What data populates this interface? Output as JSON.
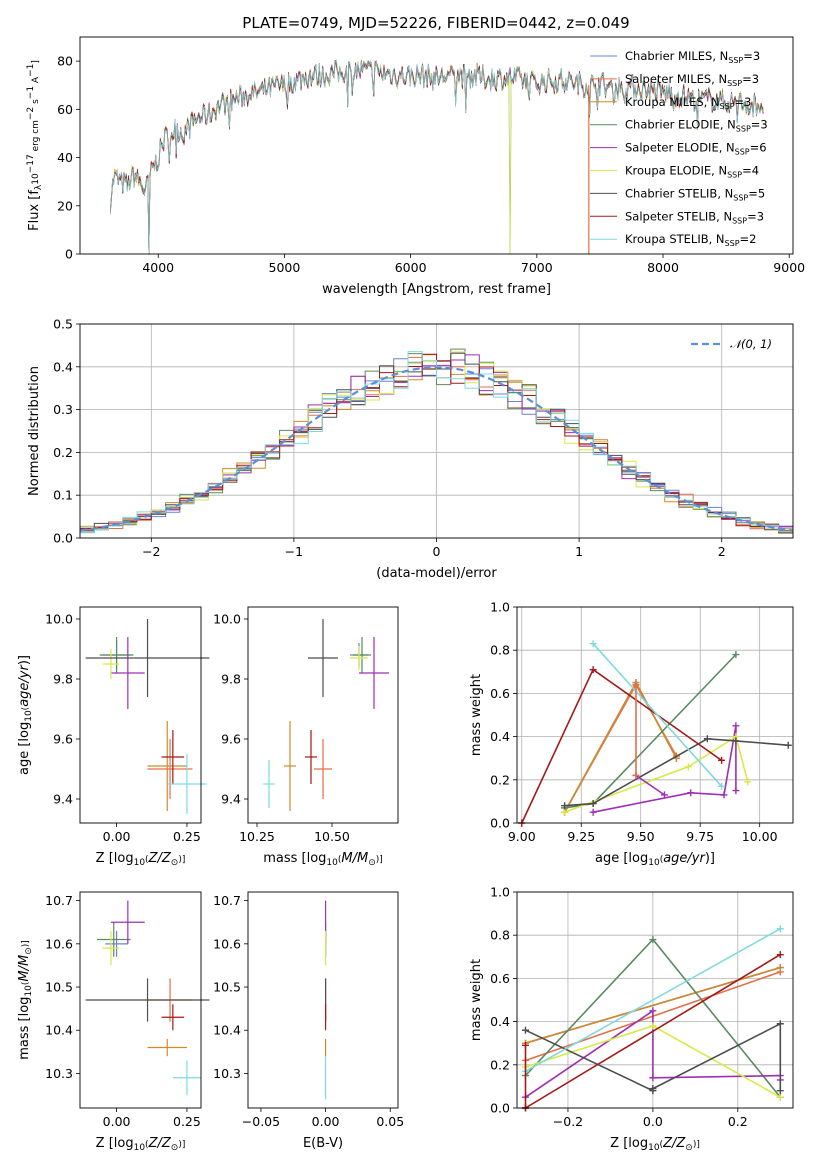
{
  "figure": {
    "title": "PLATE=0749, MJD=52226, FIBERID=0442, z=0.049"
  },
  "models": [
    {
      "name": "Chabrier MILES",
      "nssp": 3,
      "color": "#6f7fdc"
    },
    {
      "name": "Salpeter MILES",
      "nssp": 3,
      "color": "#e36f47"
    },
    {
      "name": "Kroupa MILES",
      "nssp": 3,
      "color": "#d08a2a"
    },
    {
      "name": "Chabrier ELODIE",
      "nssp": 3,
      "color": "#5a8a5e"
    },
    {
      "name": "Salpeter ELODIE",
      "nssp": 6,
      "color": "#9e2fb3"
    },
    {
      "name": "Kroupa ELODIE",
      "nssp": 4,
      "color": "#d9e84a"
    },
    {
      "name": "Chabrier STELIB",
      "nssp": 5,
      "color": "#4d4d4d"
    },
    {
      "name": "Salpeter STELIB",
      "nssp": 3,
      "color": "#a51818"
    },
    {
      "name": "Kroupa STELIB",
      "nssp": 2,
      "color": "#7fd9df"
    }
  ],
  "chart_data": [
    {
      "id": "spectrum",
      "type": "line",
      "xlabel": "wavelength [Angstrom, rest frame]",
      "ylabel": "Flux [f",
      "xlim": [
        3380,
        9030
      ],
      "ylim": [
        0,
        90
      ],
      "xticks": [
        4000,
        5000,
        6000,
        7000,
        8000,
        9000
      ],
      "yticks": [
        0,
        20,
        40,
        60,
        80
      ],
      "envelope": [
        [
          3620,
          22
        ],
        [
          3650,
          32
        ],
        [
          3700,
          30
        ],
        [
          3760,
          28
        ],
        [
          3800,
          33
        ],
        [
          3850,
          30
        ],
        [
          3900,
          26
        ],
        [
          3960,
          36
        ],
        [
          4000,
          40
        ],
        [
          4050,
          48
        ],
        [
          4100,
          50
        ],
        [
          4150,
          52
        ],
        [
          4200,
          50
        ],
        [
          4300,
          56
        ],
        [
          4400,
          58
        ],
        [
          4500,
          62
        ],
        [
          4600,
          64
        ],
        [
          4700,
          66
        ],
        [
          4800,
          67
        ],
        [
          4900,
          69
        ],
        [
          5000,
          70
        ],
        [
          5100,
          72
        ],
        [
          5200,
          74
        ],
        [
          5300,
          74
        ],
        [
          5400,
          75
        ],
        [
          5500,
          76
        ],
        [
          5600,
          76
        ],
        [
          5700,
          76
        ],
        [
          5800,
          75
        ],
        [
          5900,
          74
        ],
        [
          6000,
          74
        ],
        [
          6100,
          74
        ],
        [
          6200,
          73
        ],
        [
          6300,
          74
        ],
        [
          6400,
          74
        ],
        [
          6500,
          74
        ],
        [
          6600,
          73
        ],
        [
          6700,
          73
        ],
        [
          6800,
          73
        ],
        [
          6900,
          72
        ],
        [
          7000,
          71
        ],
        [
          7100,
          72
        ],
        [
          7200,
          72
        ],
        [
          7300,
          71
        ],
        [
          7400,
          70
        ],
        [
          7500,
          71
        ],
        [
          7600,
          68
        ],
        [
          7700,
          70
        ],
        [
          7800,
          69
        ],
        [
          7900,
          68
        ],
        [
          8000,
          67
        ],
        [
          8100,
          66
        ],
        [
          8200,
          65
        ],
        [
          8300,
          64
        ],
        [
          8400,
          64
        ],
        [
          8500,
          63
        ],
        [
          8600,
          63
        ],
        [
          8700,
          62
        ],
        [
          8800,
          62
        ]
      ]
    },
    {
      "id": "residuals",
      "type": "histogram",
      "xlabel": "(data-model)/error",
      "ylabel": "Normed distribution",
      "xlim": [
        -2.5,
        2.5
      ],
      "ylim": [
        0,
        0.5
      ],
      "xticks": [
        -2,
        -1,
        0,
        1,
        2
      ],
      "yticks": [
        0.0,
        0.1,
        0.2,
        0.3,
        0.4,
        0.5
      ],
      "bin_width": 0.1,
      "reference": {
        "name": "𝒩(0, 1)",
        "mean": 0,
        "sigma": 1,
        "color": "#5b8fd6"
      }
    },
    {
      "id": "age-vs-Z",
      "type": "scatter",
      "xlabel": "Z [log",
      "ylabel": "age  [log",
      "xlim": [
        -0.13,
        0.3
      ],
      "ylim": [
        9.32,
        10.04
      ],
      "xticks": [
        0.0,
        0.25
      ],
      "yticks": [
        9.4,
        9.6,
        9.8,
        10.0
      ],
      "points": [
        {
          "model": 0,
          "x": 0.0,
          "y": 9.88,
          "xerr": 0.05,
          "yerr": 0.05
        },
        {
          "model": 1,
          "x": 0.19,
          "y": 9.5,
          "xerr": 0.08,
          "yerr": 0.1
        },
        {
          "model": 2,
          "x": 0.18,
          "y": 9.51,
          "xerr": 0.07,
          "yerr": 0.15
        },
        {
          "model": 3,
          "x": 0.0,
          "y": 9.88,
          "xerr": 0.06,
          "yerr": 0.06
        },
        {
          "model": 4,
          "x": 0.04,
          "y": 9.82,
          "xerr": 0.06,
          "yerr": 0.12
        },
        {
          "model": 5,
          "x": -0.02,
          "y": 9.85,
          "xerr": 0.03,
          "yerr": 0.05
        },
        {
          "model": 6,
          "x": 0.11,
          "y": 9.87,
          "xerr": 0.22,
          "yerr": 0.13
        },
        {
          "model": 7,
          "x": 0.2,
          "y": 9.54,
          "xerr": 0.04,
          "yerr": 0.09
        },
        {
          "model": 8,
          "x": 0.25,
          "y": 9.45,
          "xerr": 0.07,
          "yerr": 0.1
        }
      ]
    },
    {
      "id": "age-vs-mass",
      "type": "scatter",
      "xlabel": "mass [log",
      "ylabel": "",
      "xlim": [
        10.22,
        10.72
      ],
      "ylim": [
        9.32,
        10.04
      ],
      "xticks": [
        10.25,
        10.5
      ],
      "yticks": [
        9.4,
        9.6,
        9.8,
        10.0
      ],
      "points": [
        {
          "model": 0,
          "x": 10.59,
          "y": 9.88,
          "xerr": 0.03,
          "yerr": 0.04
        },
        {
          "model": 1,
          "x": 10.47,
          "y": 9.5,
          "xerr": 0.03,
          "yerr": 0.1
        },
        {
          "model": 2,
          "x": 10.36,
          "y": 9.51,
          "xerr": 0.02,
          "yerr": 0.15
        },
        {
          "model": 3,
          "x": 10.6,
          "y": 9.88,
          "xerr": 0.03,
          "yerr": 0.06
        },
        {
          "model": 4,
          "x": 10.64,
          "y": 9.82,
          "xerr": 0.05,
          "yerr": 0.12
        },
        {
          "model": 5,
          "x": 10.59,
          "y": 9.87,
          "xerr": 0.03,
          "yerr": 0.04
        },
        {
          "model": 6,
          "x": 10.47,
          "y": 9.87,
          "xerr": 0.05,
          "yerr": 0.13
        },
        {
          "model": 7,
          "x": 10.43,
          "y": 9.54,
          "xerr": 0.02,
          "yerr": 0.09
        },
        {
          "model": 8,
          "x": 10.29,
          "y": 9.45,
          "xerr": 0.02,
          "yerr": 0.08
        }
      ]
    },
    {
      "id": "weight-vs-age",
      "type": "line",
      "xlabel": "age  [log",
      "ylabel": "mass weight",
      "xlim": [
        8.98,
        10.14
      ],
      "ylim": [
        0,
        1
      ],
      "xticks": [
        9.0,
        9.25,
        9.5,
        9.75,
        10.0
      ],
      "yticks": [
        0.0,
        0.2,
        0.4,
        0.6,
        0.8,
        1.0
      ],
      "series": [
        {
          "model": 0,
          "x": [
            9.18,
            9.48,
            9.65
          ],
          "y": [
            0.05,
            0.65,
            0.3
          ]
        },
        {
          "model": 1,
          "x": [
            9.18,
            9.48,
            9.65
          ],
          "y": [
            0.05,
            0.64,
            0.31
          ]
        },
        {
          "model": 2,
          "x": [
            9.18,
            9.48,
            9.65
          ],
          "y": [
            0.05,
            0.65,
            0.3
          ]
        },
        {
          "model": 3,
          "x": [
            9.18,
            9.3,
            9.9
          ],
          "y": [
            0.07,
            0.09,
            0.78
          ]
        },
        {
          "model": 4,
          "x": [
            9.3,
            9.71,
            9.85,
            9.9,
            9.9
          ],
          "y": [
            0.05,
            0.14,
            0.13,
            0.45,
            0.15
          ]
        },
        {
          "model": 5,
          "x": [
            9.18,
            9.7,
            9.9,
            9.95
          ],
          "y": [
            0.05,
            0.26,
            0.4,
            0.19
          ]
        },
        {
          "model": 6,
          "x": [
            9.18,
            9.3,
            9.78,
            9.9,
            10.12
          ],
          "y": [
            0.08,
            0.09,
            0.39,
            0.38,
            0.36
          ]
        },
        {
          "model": 7,
          "x": [
            9.0,
            9.3,
            9.84
          ],
          "y": [
            0.0,
            0.71,
            0.29
          ]
        },
        {
          "model": 8,
          "x": [
            9.3,
            9.84
          ],
          "y": [
            0.83,
            0.17
          ]
        },
        {
          "model": 4,
          "x": [
            9.48,
            9.6
          ],
          "y": [
            0.22,
            0.13
          ]
        },
        {
          "model": 1,
          "x": [
            9.48,
            9.48
          ],
          "y": [
            0.64,
            0.22
          ]
        }
      ]
    },
    {
      "id": "mass-vs-Z",
      "type": "scatter",
      "xlabel": "Z [log",
      "ylabel": "mass [log",
      "xlim": [
        -0.13,
        0.3
      ],
      "ylim": [
        10.22,
        10.72
      ],
      "xticks": [
        0.0,
        0.25
      ],
      "yticks": [
        10.3,
        10.4,
        10.5,
        10.6,
        10.7
      ],
      "points": [
        {
          "model": 0,
          "x": 0.0,
          "y": 10.6,
          "xerr": 0.04,
          "yerr": 0.03
        },
        {
          "model": 1,
          "x": 0.19,
          "y": 10.47,
          "xerr": 0.08,
          "yerr": 0.05
        },
        {
          "model": 2,
          "x": 0.18,
          "y": 10.36,
          "xerr": 0.07,
          "yerr": 0.02
        },
        {
          "model": 3,
          "x": -0.01,
          "y": 10.61,
          "xerr": 0.06,
          "yerr": 0.04
        },
        {
          "model": 4,
          "x": 0.04,
          "y": 10.65,
          "xerr": 0.06,
          "yerr": 0.05
        },
        {
          "model": 5,
          "x": -0.02,
          "y": 10.59,
          "xerr": 0.03,
          "yerr": 0.04
        },
        {
          "model": 6,
          "x": 0.11,
          "y": 10.47,
          "xerr": 0.22,
          "yerr": 0.05
        },
        {
          "model": 7,
          "x": 0.2,
          "y": 10.43,
          "xerr": 0.04,
          "yerr": 0.03
        },
        {
          "model": 8,
          "x": 0.25,
          "y": 10.29,
          "xerr": 0.05,
          "yerr": 0.04
        }
      ]
    },
    {
      "id": "mass-vs-ebv",
      "type": "scatter",
      "xlabel": "E(B-V)",
      "ylabel": "",
      "xlim": [
        -0.06,
        0.056
      ],
      "ylim": [
        10.22,
        10.72
      ],
      "xticks": [
        -0.05,
        0.0,
        0.05
      ],
      "yticks": [
        10.3,
        10.4,
        10.5,
        10.6,
        10.7
      ],
      "points": [
        {
          "model": 0,
          "x": 0.0,
          "y": 10.6,
          "xerr": 0,
          "yerr": 0.03
        },
        {
          "model": 1,
          "x": 0.0,
          "y": 10.47,
          "xerr": 0,
          "yerr": 0.05
        },
        {
          "model": 2,
          "x": 0.0,
          "y": 10.36,
          "xerr": 0,
          "yerr": 0.02
        },
        {
          "model": 3,
          "x": 0.0,
          "y": 10.61,
          "xerr": 0,
          "yerr": 0.04
        },
        {
          "model": 4,
          "x": 0.0,
          "y": 10.65,
          "xerr": 0,
          "yerr": 0.05
        },
        {
          "model": 5,
          "x": 0.0,
          "y": 10.59,
          "xerr": 0,
          "yerr": 0.04
        },
        {
          "model": 6,
          "x": 0.0,
          "y": 10.47,
          "xerr": 0,
          "yerr": 0.05
        },
        {
          "model": 7,
          "x": 0.0,
          "y": 10.43,
          "xerr": 0,
          "yerr": 0.03
        },
        {
          "model": 8,
          "x": 0.0,
          "y": 10.29,
          "xerr": 0,
          "yerr": 0.05
        }
      ]
    },
    {
      "id": "weight-vs-Z",
      "type": "line",
      "xlabel": "Z [log",
      "ylabel": "mass weight",
      "xlim": [
        -0.32,
        0.33
      ],
      "ylim": [
        0,
        1
      ],
      "xticks": [
        -0.2,
        0.0,
        0.2
      ],
      "yticks": [
        0.0,
        0.2,
        0.4,
        0.6,
        0.8,
        1.0
      ],
      "series": [
        {
          "model": 0,
          "x": [
            -0.3,
            0.3
          ],
          "y": [
            0.3,
            0.65
          ]
        },
        {
          "model": 1,
          "x": [
            -0.3,
            0.3
          ],
          "y": [
            0.22,
            0.63
          ]
        },
        {
          "model": 2,
          "x": [
            -0.3,
            0.3
          ],
          "y": [
            0.3,
            0.65
          ]
        },
        {
          "model": 3,
          "x": [
            -0.3,
            0.0,
            0.3
          ],
          "y": [
            0.15,
            0.78,
            0.05
          ]
        },
        {
          "model": 4,
          "x": [
            -0.3,
            0.0,
            0.0,
            0.3,
            0.3
          ],
          "y": [
            0.05,
            0.45,
            0.14,
            0.15,
            0.13
          ]
        },
        {
          "model": 5,
          "x": [
            -0.3,
            0.0,
            0.3
          ],
          "y": [
            0.19,
            0.38,
            0.05
          ]
        },
        {
          "model": 6,
          "x": [
            -0.3,
            0.0,
            0.0,
            0.3,
            0.3
          ],
          "y": [
            0.36,
            0.08,
            0.09,
            0.39,
            0.08
          ]
        },
        {
          "model": 7,
          "x": [
            -0.3,
            0.3
          ],
          "y": [
            0.0,
            0.71
          ]
        },
        {
          "model": 8,
          "x": [
            -0.3,
            0.3
          ],
          "y": [
            0.17,
            0.83
          ]
        },
        {
          "model": 7,
          "x": [
            -0.3,
            -0.3
          ],
          "y": [
            0.29,
            0.0
          ]
        }
      ]
    }
  ]
}
